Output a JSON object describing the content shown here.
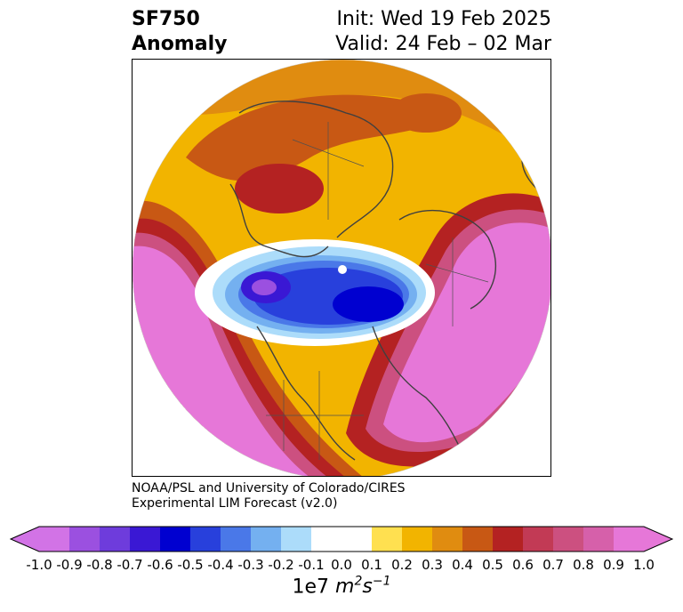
{
  "title": {
    "left_line1": "SF750",
    "left_line2": "Anomaly",
    "right_line1": "Init: Wed 19 Feb 2025",
    "right_line2": "Valid: 24 Feb – 02 Mar"
  },
  "credits": {
    "line1": "NOAA/PSL and University of Colorado/CIRES",
    "line2": "Experimental LIM Forecast (v2.0)"
  },
  "colorbar": {
    "ticks": [
      "-1.0",
      "-0.9",
      "-0.8",
      "-0.7",
      "-0.6",
      "-0.5",
      "-0.4",
      "-0.3",
      "-0.2",
      "-0.1",
      "0.0",
      "0.1",
      "0.2",
      "0.3",
      "0.4",
      "0.5",
      "0.6",
      "0.7",
      "0.8",
      "0.9",
      "1.0"
    ],
    "label_prefix": "1e7",
    "label_unit_m": "m",
    "label_unit_m_exp": "2",
    "label_unit_s": "s",
    "label_unit_s_exp": "−1",
    "colors": [
      "#d273e6",
      "#9b50e0",
      "#6e3cdc",
      "#3a18d4",
      "#0000d0",
      "#2840dc",
      "#4a78e8",
      "#74b0f0",
      "#acdcfa",
      "#ffffff",
      "#ffffff",
      "#ffe050",
      "#f2b400",
      "#e08c10",
      "#c85814",
      "#b42222",
      "#c23a55",
      "#cc5080",
      "#d660aa",
      "#e677d8"
    ],
    "low_extend_color": "#d273e6",
    "high_extend_color": "#e677d8"
  },
  "map": {
    "projection": "north-polar-stereographic",
    "field": "750 hPa streamfunction anomaly"
  }
}
